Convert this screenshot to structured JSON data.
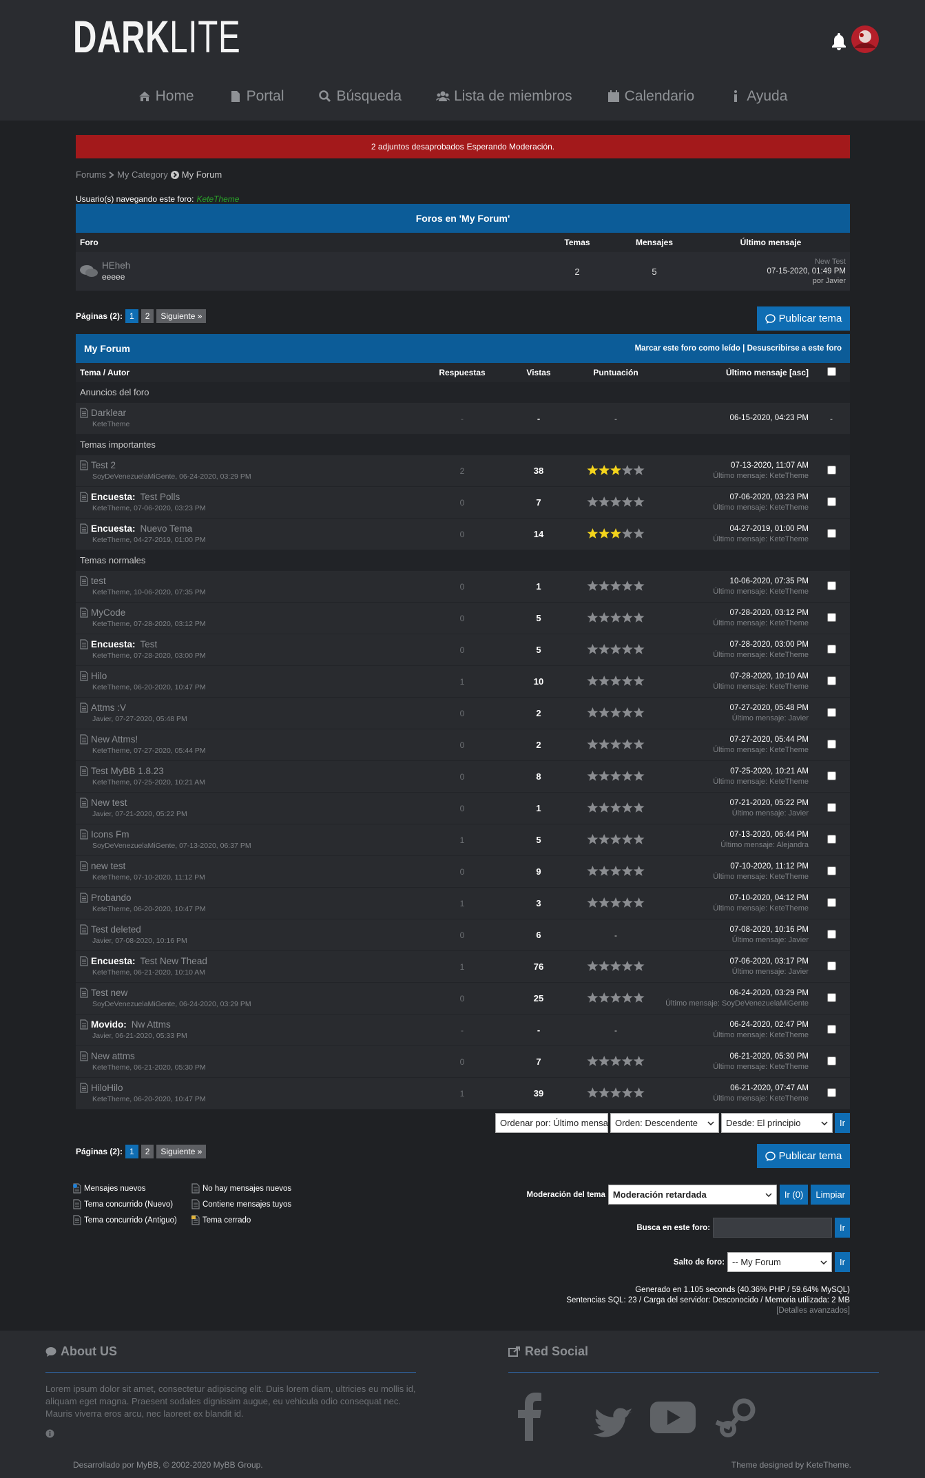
{
  "header": {
    "logo_bold": "DARK",
    "logo_light": "LITE"
  },
  "nav": [
    "Home",
    "Portal",
    "Búsqueda",
    "Lista de miembros",
    "Calendario",
    "Ayuda"
  ],
  "alert": {
    "text": "2 adjuntos desaprobados",
    "strong": "Esperando Moderación."
  },
  "breadcrumb": [
    "Forums",
    "My Category",
    "My Forum"
  ],
  "browsing": {
    "label": "Usuario(s) navegando este foro:",
    "user": "KeteTheme"
  },
  "subforums": {
    "title": "Foros en 'My Forum'",
    "columns": [
      "Foro",
      "Temas",
      "Mensajes",
      "Último mensaje"
    ],
    "rows": [
      {
        "name": "HEheh",
        "description": "eeeee",
        "threads": "2",
        "posts": "5",
        "last_title": "New Test",
        "last_date": "07-15-2020, 01:49 PM",
        "last_by": "por Javier"
      }
    ]
  },
  "pagination": {
    "label": "Páginas (2):",
    "pages": [
      "1",
      "2"
    ],
    "next": "Siguiente »"
  },
  "new_thread": "Publicar tema",
  "forum": {
    "title": "My Forum",
    "mark_read": "Marcar este foro como leído",
    "separator": "|",
    "unsubscribe": "Desuscribirse a este foro",
    "columns": [
      "Tema / Autor",
      "Respuestas",
      "Vistas",
      "Puntuación",
      "Último mensaje [asc]"
    ]
  },
  "sections": [
    {
      "title": "Anuncios del foro",
      "rows": [
        {
          "title": "Darklear",
          "byline": "KeteTheme",
          "replies": "-",
          "views": "-",
          "rating": "-",
          "last_date": "06-15-2020, 04:23 PM",
          "mod": "-"
        }
      ]
    },
    {
      "title": "Temas importantes",
      "rows": [
        {
          "title": "Test 2",
          "byline": "SoyDeVenezuelaMiGente, 06-24-2020, 03:29 PM",
          "replies": "2",
          "views": "38",
          "rating": 3,
          "last_date": "07-13-2020, 11:07 AM",
          "last_by": "Último mensaje: KeteTheme"
        },
        {
          "prefix": "Encuesta:",
          "title": "Test Polls",
          "byline": "KeteTheme, 07-06-2020, 03:23 PM",
          "replies": "0",
          "views": "7",
          "rating": 0,
          "last_date": "07-06-2020, 03:23 PM",
          "last_by": "Último mensaje: KeteTheme"
        },
        {
          "prefix": "Encuesta:",
          "title": "Nuevo Tema",
          "byline": "KeteTheme, 04-27-2019, 01:00 PM",
          "replies": "0",
          "views": "14",
          "rating": 3,
          "last_date": "04-27-2019, 01:00 PM",
          "last_by": "Último mensaje: KeteTheme"
        }
      ]
    },
    {
      "title": "Temas normales",
      "rows": [
        {
          "title": "test",
          "byline": "KeteTheme, 10-06-2020, 07:35 PM",
          "replies": "0",
          "views": "1",
          "rating": 0,
          "last_date": "10-06-2020, 07:35 PM",
          "last_by": "Último mensaje: KeteTheme"
        },
        {
          "title": "MyCode",
          "byline": "KeteTheme, 07-28-2020, 03:12 PM",
          "replies": "0",
          "views": "5",
          "rating": 0,
          "last_date": "07-28-2020, 03:12 PM",
          "last_by": "Último mensaje: KeteTheme"
        },
        {
          "prefix": "Encuesta:",
          "title": "Test",
          "byline": "KeteTheme, 07-28-2020, 03:00 PM",
          "replies": "0",
          "views": "5",
          "rating": 0,
          "last_date": "07-28-2020, 03:00 PM",
          "last_by": "Último mensaje: KeteTheme"
        },
        {
          "title": "Hilo",
          "byline": "KeteTheme, 06-20-2020, 10:47 PM",
          "replies": "1",
          "views": "10",
          "rating": 0,
          "last_date": "07-28-2020, 10:10 AM",
          "last_by": "Último mensaje: KeteTheme"
        },
        {
          "title": "Attms :V",
          "byline": "Javier, 07-27-2020, 05:48 PM",
          "replies": "0",
          "views": "2",
          "rating": 0,
          "last_date": "07-27-2020, 05:48 PM",
          "last_by": "Último mensaje: Javier"
        },
        {
          "title": "New Attms!",
          "byline": "KeteTheme, 07-27-2020, 05:44 PM",
          "replies": "0",
          "views": "2",
          "rating": 0,
          "last_date": "07-27-2020, 05:44 PM",
          "last_by": "Último mensaje: KeteTheme"
        },
        {
          "title": "Test MyBB 1.8.23",
          "byline": "KeteTheme, 07-25-2020, 10:21 AM",
          "replies": "0",
          "views": "8",
          "rating": 0,
          "last_date": "07-25-2020, 10:21 AM",
          "last_by": "Último mensaje: KeteTheme"
        },
        {
          "title": "New test",
          "byline": "Javier, 07-21-2020, 05:22 PM",
          "replies": "0",
          "views": "1",
          "rating": 0,
          "last_date": "07-21-2020, 05:22 PM",
          "last_by": "Último mensaje: Javier"
        },
        {
          "title": "Icons Fm",
          "byline": "SoyDeVenezuelaMiGente, 07-13-2020, 06:37 PM",
          "replies": "1",
          "views": "5",
          "rating": 0,
          "last_date": "07-13-2020, 06:44 PM",
          "last_by": "Último mensaje: Alejandra"
        },
        {
          "title": "new test",
          "byline": "KeteTheme, 07-10-2020, 11:12 PM",
          "replies": "0",
          "views": "9",
          "rating": 0,
          "last_date": "07-10-2020, 11:12 PM",
          "last_by": "Último mensaje: KeteTheme"
        },
        {
          "title": "Probando",
          "byline": "KeteTheme, 06-20-2020, 10:47 PM",
          "replies": "1",
          "views": "3",
          "rating": 0,
          "last_date": "07-10-2020, 04:12 PM",
          "last_by": "Último mensaje: KeteTheme"
        },
        {
          "title": "Test deleted",
          "byline": "Javier, 07-08-2020, 10:16 PM",
          "replies": "0",
          "views": "6",
          "rating": "-",
          "last_date": "07-08-2020, 10:16 PM",
          "last_by": "Último mensaje: Javier"
        },
        {
          "prefix": "Encuesta:",
          "title": "Test New Thead",
          "byline": "KeteTheme, 06-21-2020, 10:10 AM",
          "replies": "1",
          "views": "76",
          "rating": 0,
          "last_date": "07-06-2020, 03:17 PM",
          "last_by": "Último mensaje: Javier"
        },
        {
          "title": "Test new",
          "byline": "SoyDeVenezuelaMiGente, 06-24-2020, 03:29 PM",
          "replies": "0",
          "views": "25",
          "rating": 0,
          "last_date": "06-24-2020, 03:29 PM",
          "last_by": "Último mensaje: SoyDeVenezuelaMiGente"
        },
        {
          "prefix": "Movido:",
          "title": "Nw Attms",
          "byline": "Javier, 06-21-2020, 05:33 PM",
          "replies": "-",
          "views": "-",
          "rating": "-",
          "last_date": "06-24-2020, 02:47 PM",
          "last_by": "Último mensaje: KeteTheme"
        },
        {
          "title": "New attms",
          "byline": "KeteTheme, 06-21-2020, 05:30 PM",
          "replies": "0",
          "views": "7",
          "rating": 0,
          "last_date": "06-21-2020, 05:30 PM",
          "last_by": "Último mensaje: KeteTheme"
        },
        {
          "title": "HiloHilo",
          "byline": "KeteTheme, 06-20-2020, 10:47 PM",
          "replies": "1",
          "views": "39",
          "rating": 0,
          "last_date": "06-21-2020, 07:47 AM",
          "last_by": "Último mensaje: KeteTheme"
        }
      ]
    }
  ],
  "sort": {
    "sort_by": "Ordenar por: Último mensaje",
    "order": "Orden: Descendente",
    "from": "Desde: El principio",
    "go": "Ir"
  },
  "legend": [
    "Mensajes nuevos",
    "No hay mensajes nuevos",
    "Tema concurrido (Nuevo)",
    "Contiene mensajes tuyos",
    "Tema concurrido (Antiguo)",
    "Tema cerrado"
  ],
  "moderation": {
    "label": "Moderación del tema",
    "select": "Moderación retardada",
    "go": "Ir (0)",
    "clear": "Limpiar"
  },
  "search": {
    "label": "Busca en este foro:",
    "go": "Ir"
  },
  "jump": {
    "label": "Salto de foro:",
    "select": "-- My Forum",
    "go": "Ir"
  },
  "debug": [
    "Generado en 1.105 seconds (40.36% PHP / 59.64% MySQL)",
    "Sentencias SQL: 23 / Carga del servidor: Desconocido / Memoria utilizada: 2 MB",
    "[Detalles avanzados]"
  ],
  "footer": {
    "about_title": "About US",
    "about_text": "Lorem ipsum dolor sit amet, consectetur adipiscing elit. Duis lorem diam, ultricies eu mollis id, aliquam eget magna. Praesent sodales dignissim augue, eu vehicula odio consequat nec. Mauris viverra eros arcu, nec laoreet ex blandit id.",
    "social_title": "Red Social",
    "copyright": "Desarrollado por MyBB, © 2002-2020 MyBB Group.",
    "theme": "Theme designed by KeteTheme."
  }
}
